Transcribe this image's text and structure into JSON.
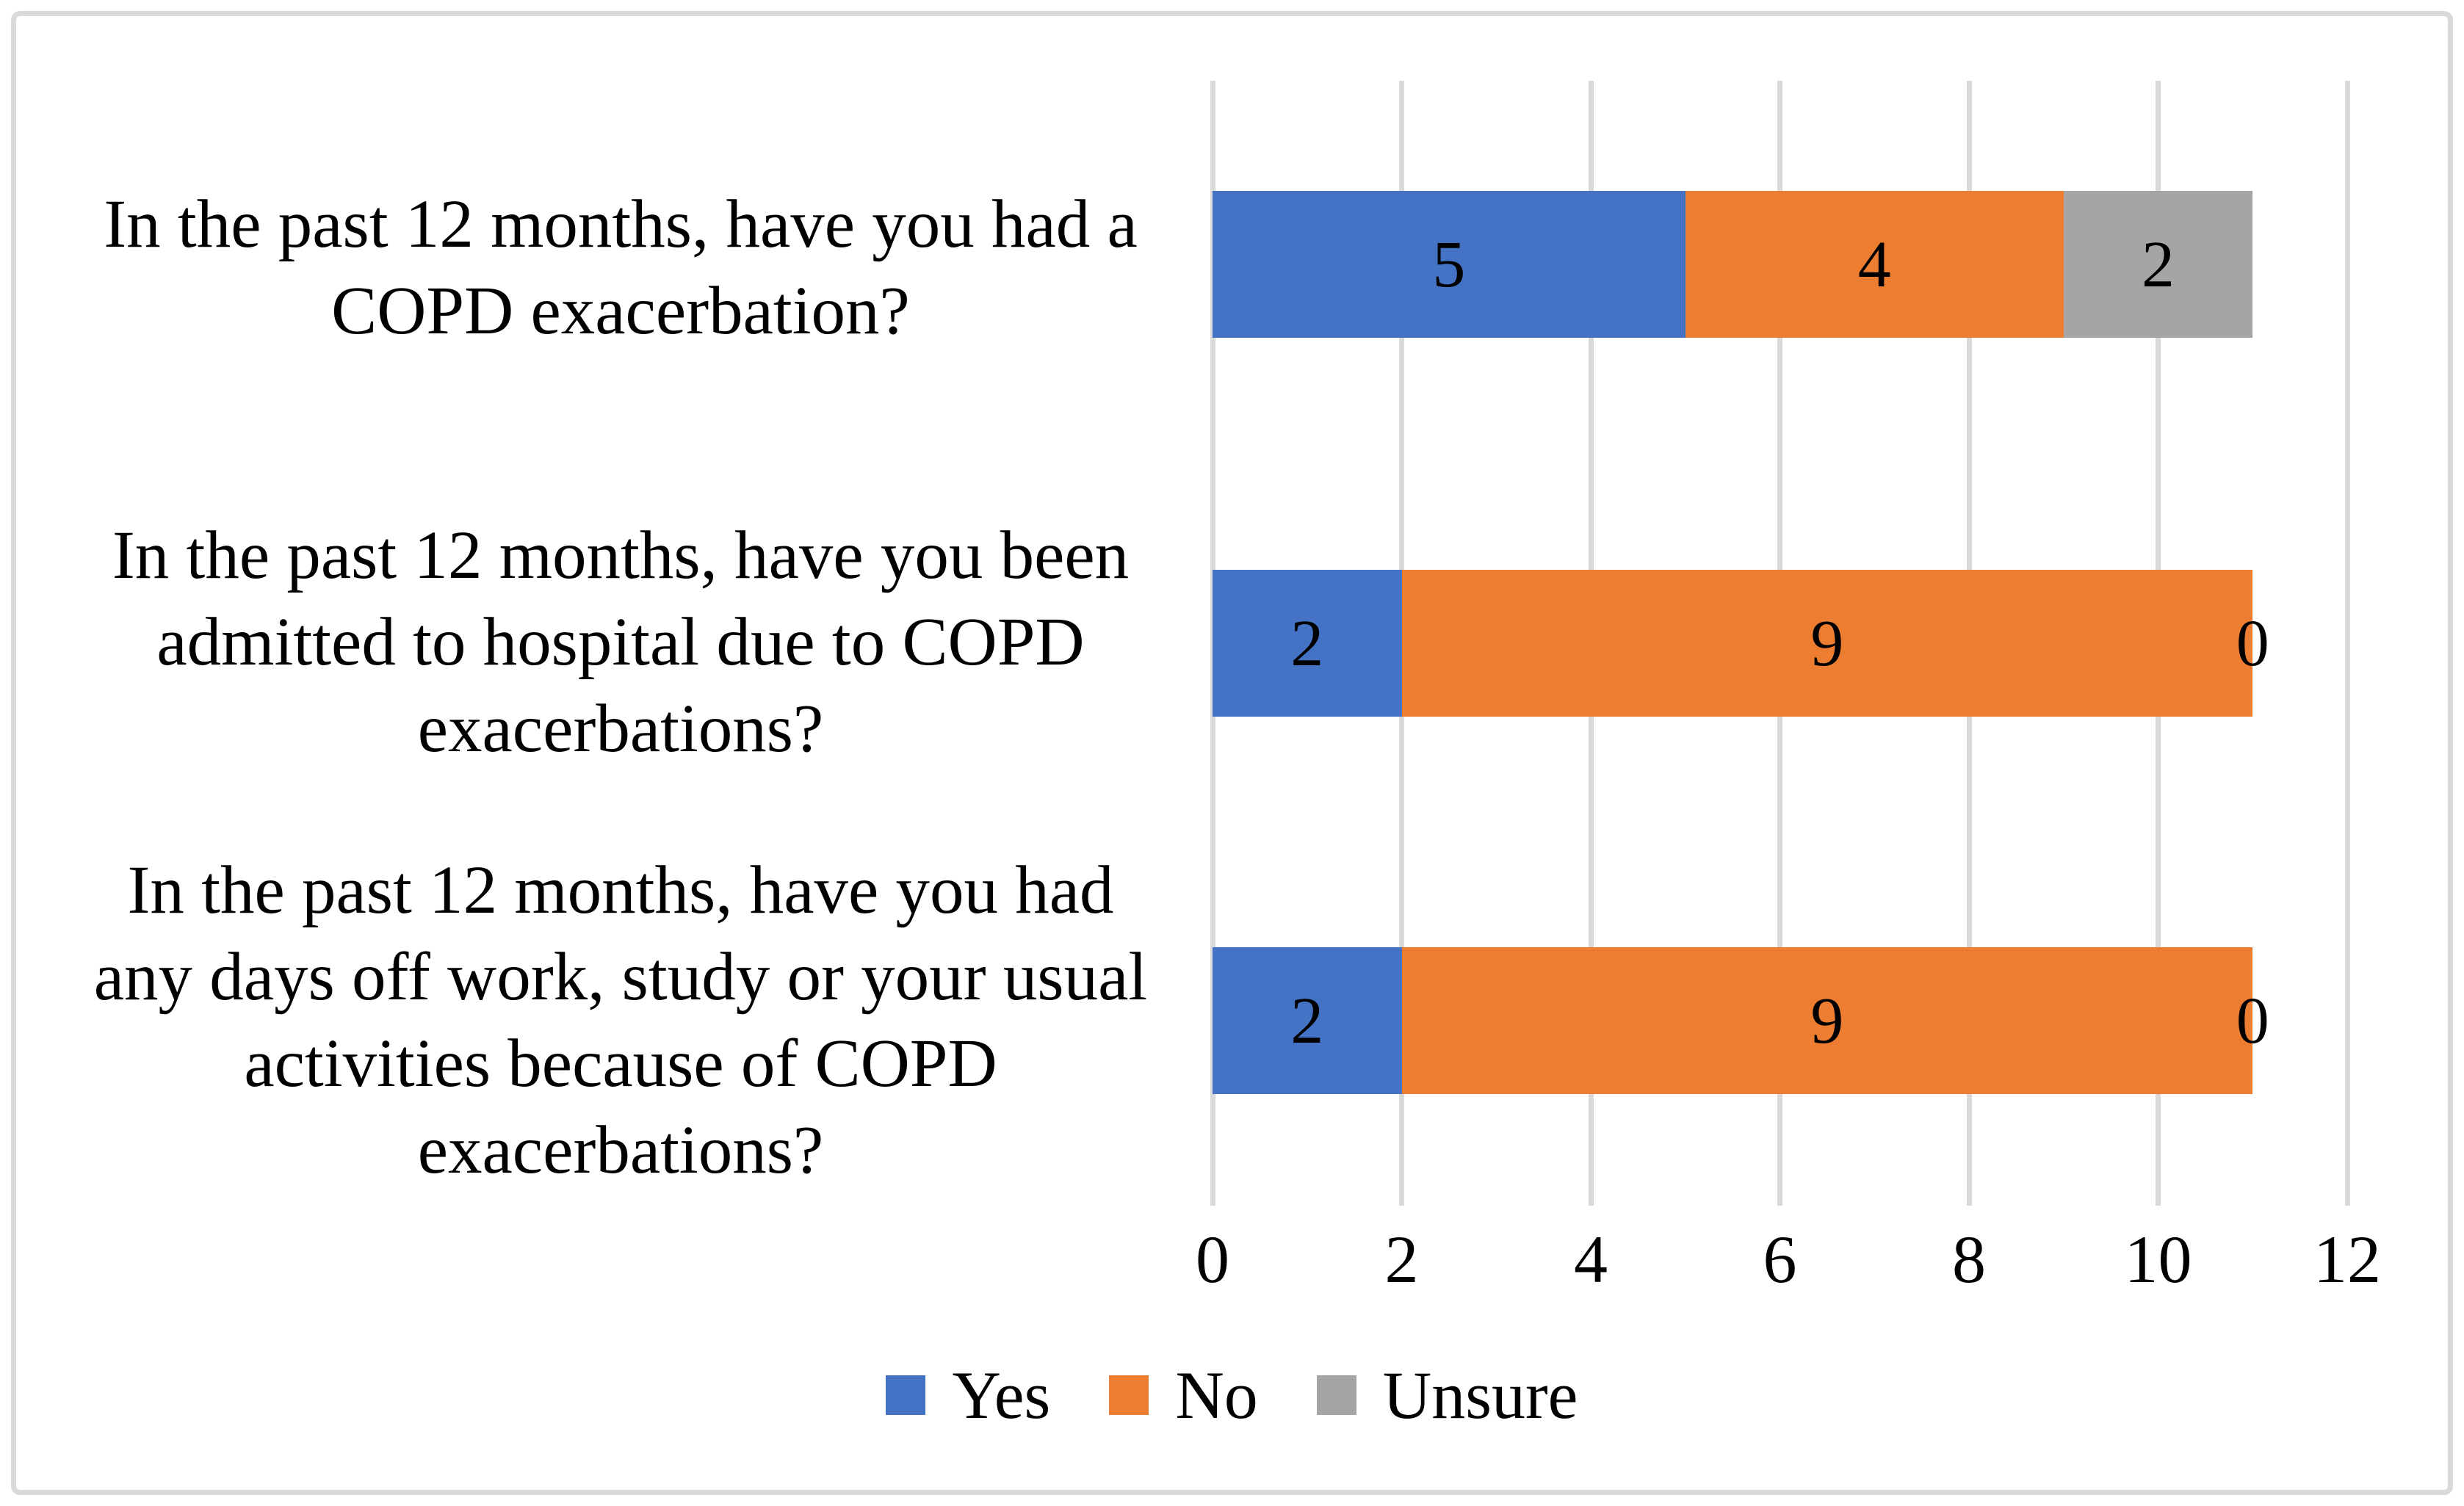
{
  "chart_data": {
    "type": "bar",
    "orientation": "horizontal",
    "stacked": true,
    "title": "",
    "xlabel": "",
    "ylabel": "",
    "categories": [
      "In the past 12 months, have you had a COPD exacerbation?",
      "In the past 12 months, have you been admitted to hospital due to COPD exacerbations?",
      "In the past 12 months, have you had any days off work, study or your usual activities because of COPD exacerbations?"
    ],
    "series": [
      {
        "name": "Yes",
        "color": "#4472C4",
        "values": [
          5,
          2,
          2
        ]
      },
      {
        "name": "No",
        "color": "#ED7D31",
        "values": [
          4,
          9,
          9
        ]
      },
      {
        "name": "Unsure",
        "color": "#A5A5A5",
        "values": [
          2,
          0,
          0
        ]
      }
    ],
    "data_labels_shown": true,
    "xlim": [
      0,
      12
    ],
    "xticks": [
      0,
      2,
      4,
      6,
      8,
      10,
      12
    ],
    "grid": true,
    "gridline_color": "#D9D9D9",
    "legend_position": "bottom",
    "text_color": "#000000",
    "background_color": "#FFFFFF"
  }
}
